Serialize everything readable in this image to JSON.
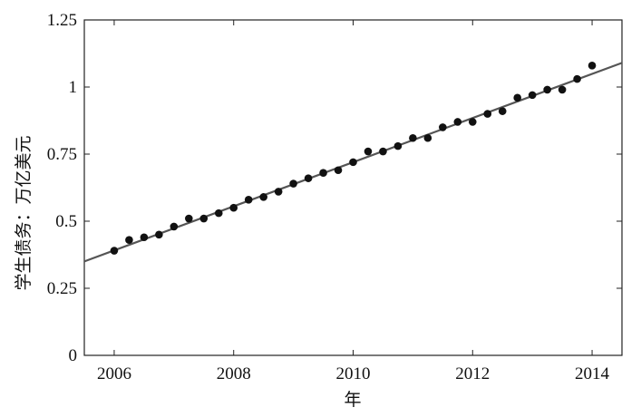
{
  "chart_data": {
    "type": "scatter",
    "xlabel": "年",
    "ylabel": "学生债务：万亿美元",
    "xlim": [
      2005.5,
      2014.5
    ],
    "ylim": [
      0,
      1.25
    ],
    "xticks": [
      2006,
      2008,
      2010,
      2012,
      2014
    ],
    "xtick_labels": [
      "2006",
      "2008",
      "2010",
      "2012",
      "2014"
    ],
    "yticks": [
      0,
      0.25,
      0.5,
      0.75,
      1,
      1.25
    ],
    "ytick_labels": [
      "0",
      "0.25",
      "0.5",
      "0.75",
      "1",
      "1.25"
    ],
    "grid": false,
    "points": [
      [
        2006.0,
        0.39
      ],
      [
        2006.25,
        0.43
      ],
      [
        2006.5,
        0.44
      ],
      [
        2006.75,
        0.45
      ],
      [
        2007.0,
        0.48
      ],
      [
        2007.25,
        0.51
      ],
      [
        2007.5,
        0.51
      ],
      [
        2007.75,
        0.53
      ],
      [
        2008.0,
        0.55
      ],
      [
        2008.25,
        0.58
      ],
      [
        2008.5,
        0.59
      ],
      [
        2008.75,
        0.61
      ],
      [
        2009.0,
        0.64
      ],
      [
        2009.25,
        0.66
      ],
      [
        2009.5,
        0.68
      ],
      [
        2009.75,
        0.69
      ],
      [
        2010.0,
        0.72
      ],
      [
        2010.25,
        0.76
      ],
      [
        2010.5,
        0.76
      ],
      [
        2010.75,
        0.78
      ],
      [
        2011.0,
        0.81
      ],
      [
        2011.25,
        0.81
      ],
      [
        2011.5,
        0.85
      ],
      [
        2011.75,
        0.87
      ],
      [
        2012.0,
        0.87
      ],
      [
        2012.25,
        0.9
      ],
      [
        2012.5,
        0.91
      ],
      [
        2012.75,
        0.96
      ],
      [
        2013.0,
        0.97
      ],
      [
        2013.25,
        0.99
      ],
      [
        2013.5,
        0.99
      ],
      [
        2013.75,
        1.03
      ],
      [
        2014.0,
        1.08
      ]
    ],
    "fit_line": {
      "x": [
        2005.5,
        2014.5
      ],
      "y": [
        0.35,
        1.09
      ]
    },
    "colors": {
      "points": "#111111",
      "fit_line": "#555555",
      "axes": "#222222"
    }
  }
}
